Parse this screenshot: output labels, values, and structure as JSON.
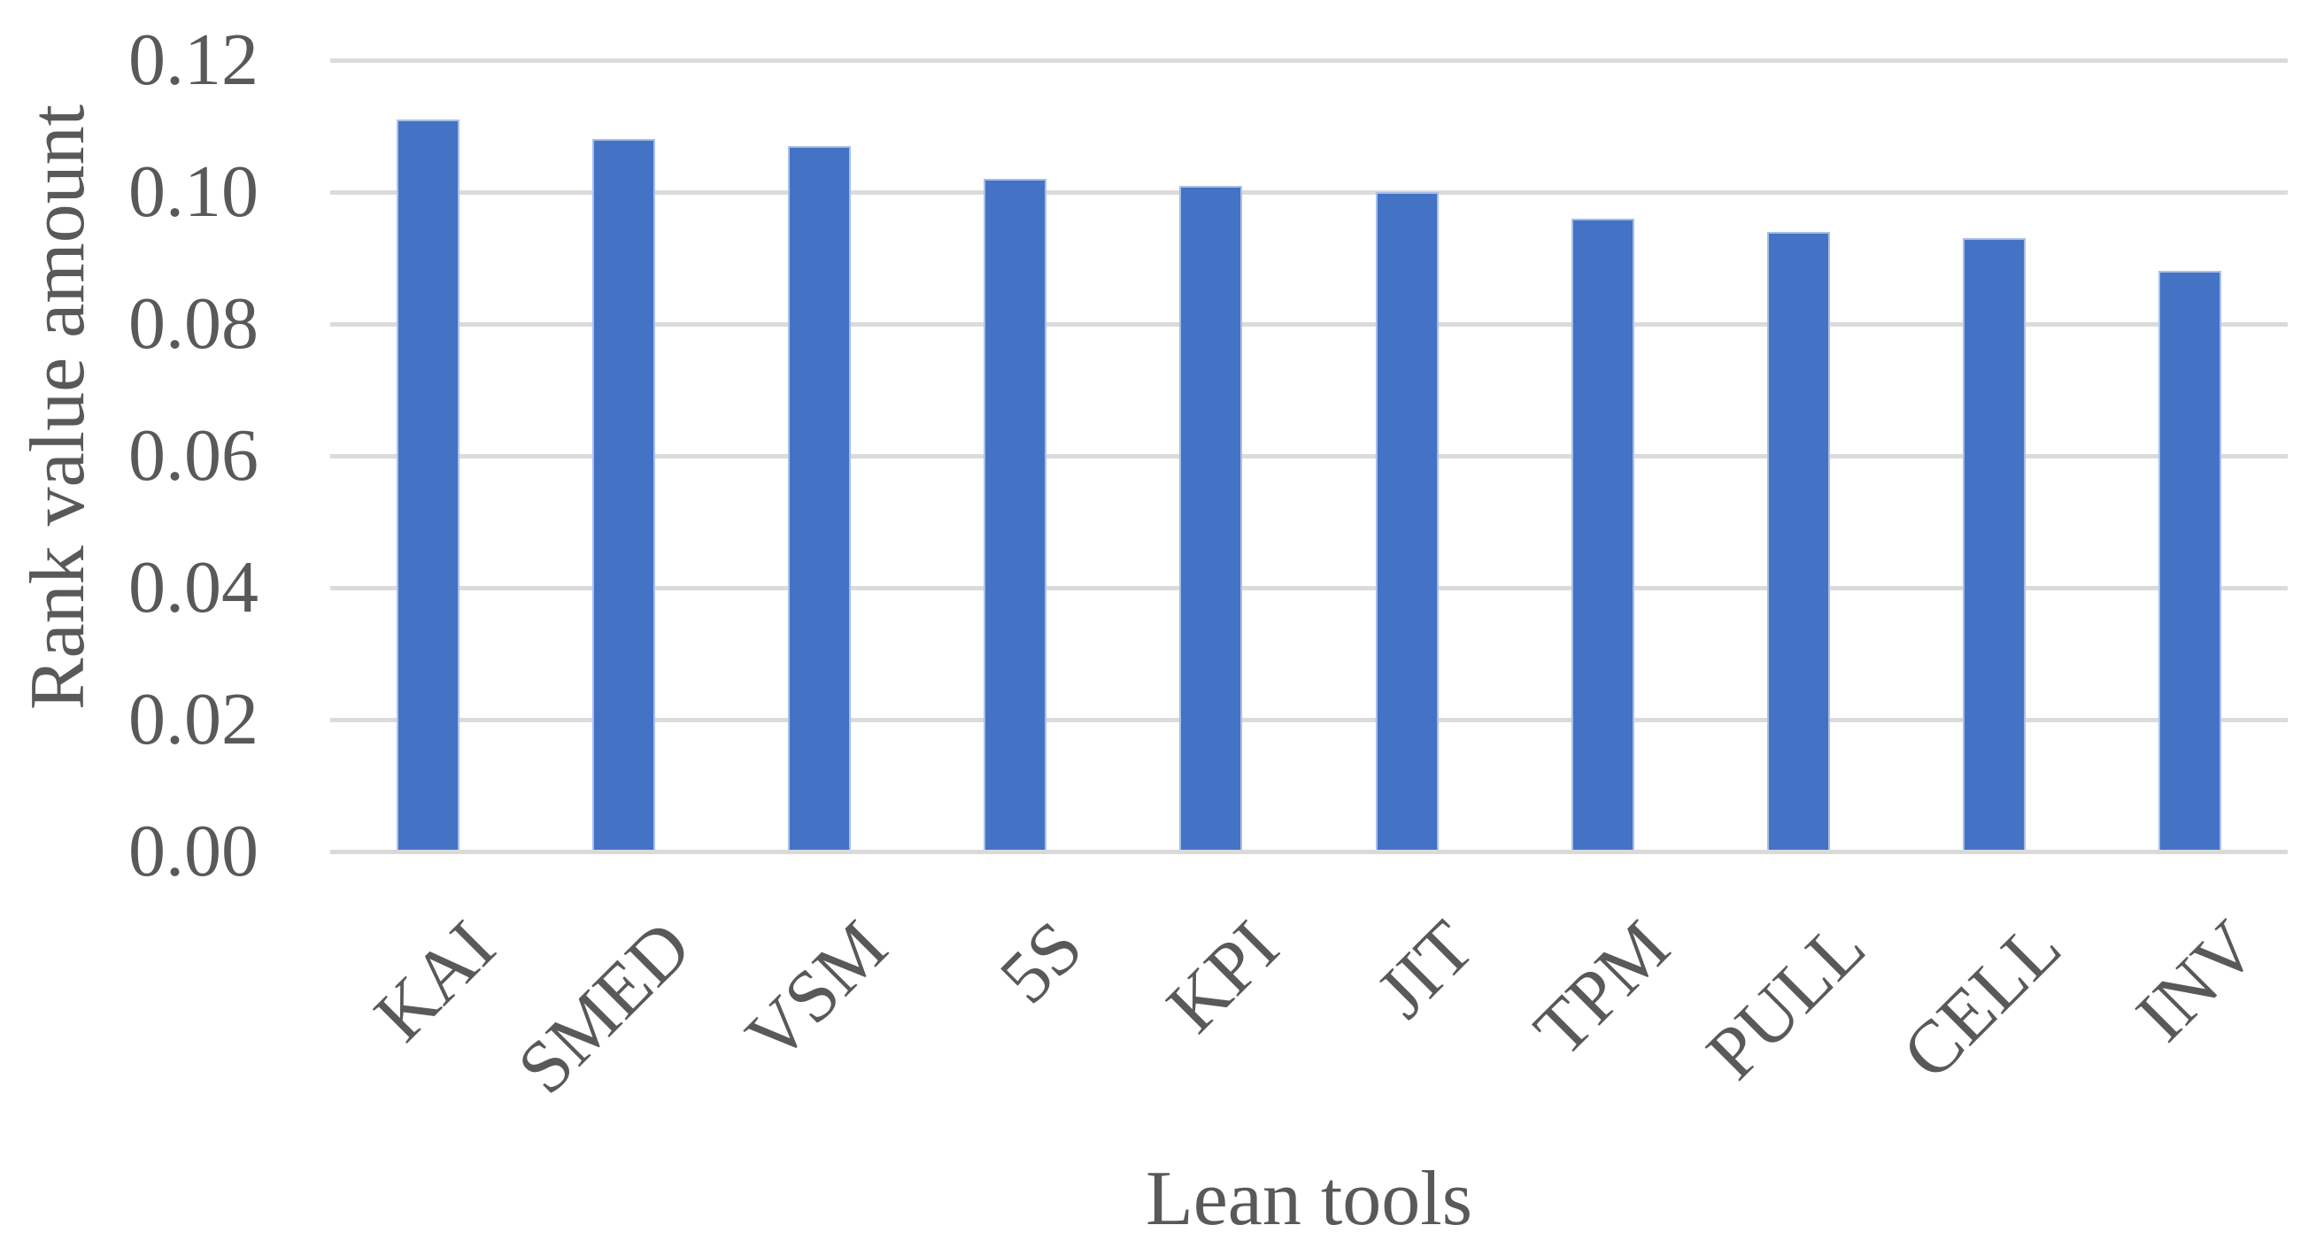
{
  "chart_data": {
    "type": "bar",
    "title": "",
    "categories": [
      "KAI",
      "SMED",
      "VSM",
      "5S",
      "KPI",
      "JIT",
      "TPM",
      "PULL",
      "CELL",
      "INV"
    ],
    "values": [
      0.111,
      0.108,
      0.107,
      0.102,
      0.101,
      0.1,
      0.096,
      0.094,
      0.093,
      0.088
    ],
    "series_name": "Rank value",
    "xlabel": "Lean tools",
    "ylabel": "Rank value amount",
    "ylim": [
      0,
      0.12
    ],
    "ytick_interval": 0.02,
    "ytick_labels": [
      "0.00",
      "0.02",
      "0.04",
      "0.06",
      "0.08",
      "0.10",
      "0.12"
    ],
    "grid": "horizontal-only",
    "legend": "none",
    "colors": {
      "bar_fill": "#4472C4",
      "bar_border": "#A9BFE8",
      "gridline": "#DBDBDB",
      "axis_line": "#D9D9D9",
      "text": "#595959",
      "background": "#FFFFFF"
    }
  }
}
